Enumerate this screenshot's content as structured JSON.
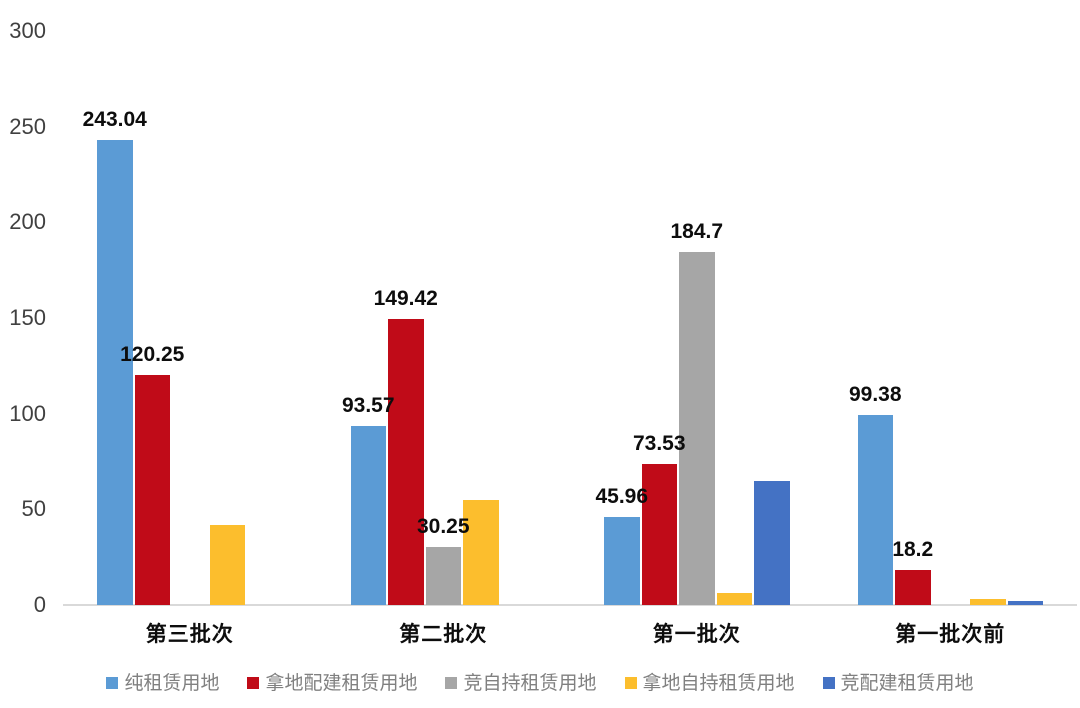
{
  "chart_data": {
    "type": "bar",
    "title": "",
    "xlabel": "",
    "ylabel": "",
    "categories": [
      "第三批次",
      "第二批次",
      "第一批次",
      "第一批次前"
    ],
    "series": [
      {
        "name": "纯租赁用地",
        "color": "#5B9BD5",
        "values": [
          243.04,
          93.57,
          45.96,
          99.38
        ],
        "data_labels": [
          "243.04",
          "93.57",
          "45.96",
          "99.38"
        ]
      },
      {
        "name": "拿地配建租赁用地",
        "color": "#C00B18",
        "values": [
          120.25,
          149.42,
          73.53,
          18.2
        ],
        "data_labels": [
          "120.25",
          "149.42",
          "73.53",
          "18.2"
        ]
      },
      {
        "name": "竞自持租赁用地",
        "color": "#A6A6A6",
        "values": [
          0,
          30.25,
          184.7,
          0
        ],
        "data_labels": [
          null,
          "30.25",
          "184.7",
          null
        ]
      },
      {
        "name": "拿地自持租赁用地",
        "color": "#FCBE2D",
        "values": [
          42,
          55,
          6.3,
          3
        ],
        "data_labels": [
          null,
          null,
          null,
          null
        ]
      },
      {
        "name": "竞配建租赁用地",
        "color": "#4472C4",
        "values": [
          0,
          0,
          65,
          2
        ],
        "data_labels": [
          null,
          null,
          null,
          null
        ]
      }
    ],
    "y_axis": {
      "min": 0,
      "max": 300,
      "tick_step": 50,
      "ticks": [
        300,
        250,
        200,
        150,
        100,
        50,
        0
      ]
    },
    "legend": {
      "position": "bottom",
      "entries": [
        "纯租赁用地",
        "拿地配建租赁用地",
        "竞自持租赁用地",
        "拿地自持租赁用地",
        "竞配建租赁用地"
      ]
    },
    "grid": false,
    "colors": {
      "background": "#FFFFFF",
      "axis_line": "#D9D9D9",
      "tick_label": "#404040",
      "data_label": "#0D0D0D",
      "category_label": "#0D0D0D",
      "legend_text": "#808080"
    }
  }
}
